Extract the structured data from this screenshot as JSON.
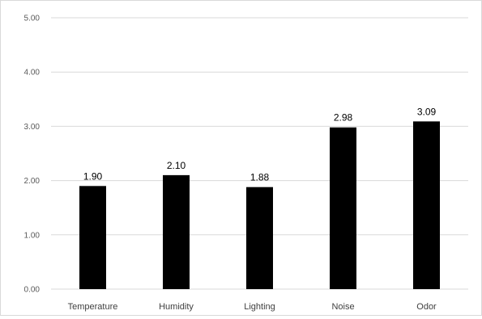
{
  "chart_data": {
    "type": "bar",
    "categories": [
      "Temperature",
      "Humidity",
      "Lighting",
      "Noise",
      "Odor"
    ],
    "values": [
      1.9,
      2.1,
      1.88,
      2.98,
      3.09
    ],
    "data_labels": [
      "1.90",
      "2.10",
      "1.88",
      "2.98",
      "3.09"
    ],
    "yticks": [
      "0.00",
      "1.00",
      "2.00",
      "3.00",
      "4.00",
      "5.00"
    ],
    "ylim": [
      0,
      5
    ],
    "title": "",
    "xlabel": "",
    "ylabel": "",
    "grid": true,
    "bar_color": "#000000",
    "grid_color": "#d9d9d9"
  }
}
